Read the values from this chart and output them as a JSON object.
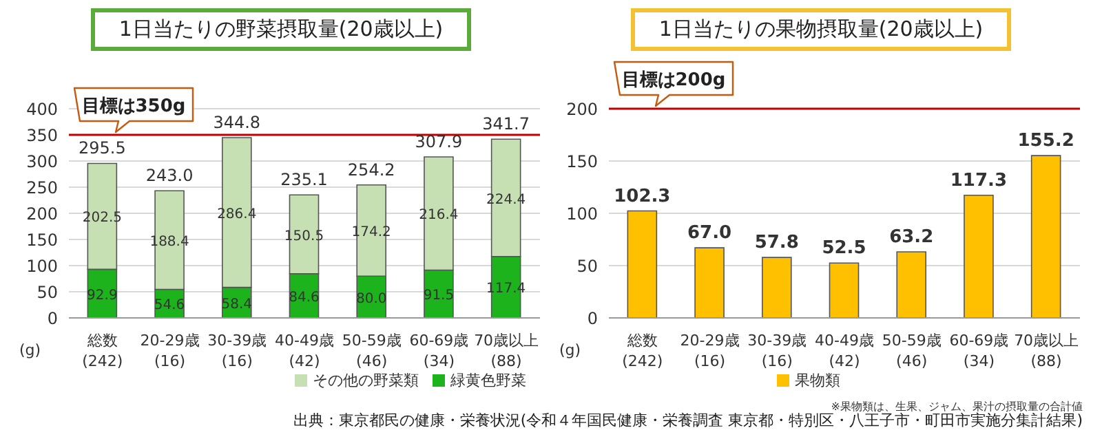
{
  "chart_data": [
    {
      "type": "bar",
      "title": "1日当たりの野菜摂取量(20歳以上)",
      "categories": [
        "総数\n(242)",
        "20-29歳\n(16)",
        "30-39歳\n(16)",
        "40-49歳\n(42)",
        "50-59歳\n(46)",
        "60-69歳\n(34)",
        "70歳以上\n(88)"
      ],
      "series": [
        {
          "name": "緑黄色野菜",
          "color": "#1db31d",
          "values": [
            92.9,
            54.6,
            58.4,
            84.6,
            80.0,
            91.5,
            117.4
          ],
          "value_labels": [
            "92.9",
            "54.6",
            "58.4",
            "84.6",
            "80.0",
            "91.5",
            "117.4"
          ]
        },
        {
          "name": "その他の野菜類",
          "color": "#c6e0b4",
          "values": [
            202.5,
            188.4,
            286.4,
            150.5,
            174.2,
            216.4,
            224.4
          ],
          "value_labels": [
            "202.5",
            "188.4",
            "286.4",
            "150.5",
            "174.2",
            "216.4",
            "224.4"
          ]
        }
      ],
      "stacked": true,
      "totals": [
        "295.5",
        "243.0",
        "344.8",
        "235.1",
        "254.2",
        "307.9",
        "341.7"
      ],
      "ylabel": "(g)",
      "ylim": [
        0,
        400
      ],
      "yticks": [
        0,
        50,
        100,
        150,
        200,
        250,
        300,
        350,
        400
      ],
      "grid": "y",
      "legend": "bottom right",
      "ref_lines": [
        {
          "axis": "y",
          "value": 350,
          "label": "目標は350g",
          "color": "#c00000"
        }
      ]
    },
    {
      "type": "bar",
      "title": "1日当たりの果物摂取量(20歳以上)",
      "categories": [
        "総数\n(242)",
        "20-29歳\n(16)",
        "30-39歳\n(16)",
        "40-49歳\n(42)",
        "50-59歳\n(46)",
        "60-69歳\n(34)",
        "70歳以上\n(88)"
      ],
      "series": [
        {
          "name": "果物類",
          "color": "#ffc000",
          "values": [
            102.3,
            67.0,
            57.8,
            52.5,
            63.2,
            117.3,
            155.2
          ],
          "value_labels": [
            "102.3",
            "67.0",
            "57.8",
            "52.5",
            "63.2",
            "117.3",
            "155.2"
          ]
        }
      ],
      "ylabel": "(g)",
      "ylim": [
        0,
        200
      ],
      "yticks": [
        0,
        50,
        100,
        150,
        200
      ],
      "grid": "y",
      "legend": "bottom",
      "ref_lines": [
        {
          "axis": "y",
          "value": 200,
          "label": "目標は200g",
          "color": "#c00000"
        }
      ],
      "annotations": [
        "※果物類は、生果、ジャム、果汁の摂取量の合計値",
        "出典：東京都民の健康・栄養状況(令和４年国民健康・栄養調査 東京都・特別区・八王子市・町田市実施分集計結果)"
      ]
    }
  ]
}
